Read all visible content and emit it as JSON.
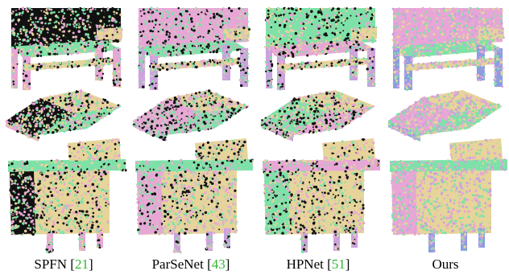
{
  "figure": {
    "methods": [
      {
        "name": "SPFN",
        "ref": "21",
        "scheme": "spfn"
      },
      {
        "name": "ParSeNet",
        "ref": "43",
        "scheme": "parsenet"
      },
      {
        "name": "HPNet",
        "ref": "51",
        "scheme": "hpnet"
      },
      {
        "name": "Ours",
        "ref": "",
        "scheme": "ours"
      }
    ],
    "rows": [
      "bench",
      "roof",
      "desk"
    ],
    "colors": {
      "black": "#111111",
      "green": "#7ee2a8",
      "pink": "#e8a6d6",
      "tan": "#e6d49a",
      "lavender": "#c9a2de",
      "blue": "#8c9de0",
      "gray": "#cfc7c0"
    }
  }
}
